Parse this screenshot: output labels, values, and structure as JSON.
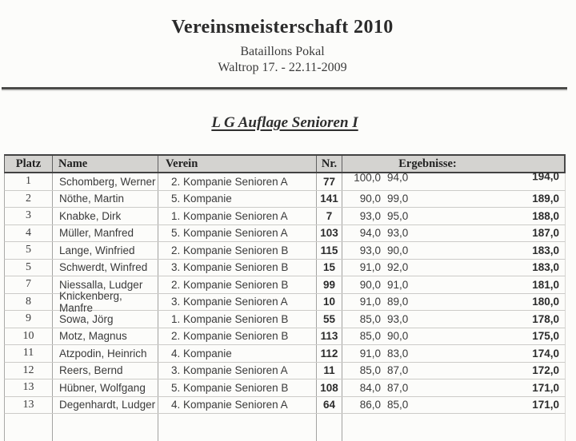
{
  "document": {
    "title": "Vereinsmeisterschaft 2010",
    "subtitle1": "Bataillons Pokal",
    "subtitle2": "Waltrop 17. - 22.11-2009",
    "section_heading": "L G Auflage Senioren I"
  },
  "table": {
    "columns": [
      "Platz",
      "Name",
      "Verein",
      "Nr.",
      "Ergebnisse:"
    ],
    "rows": [
      {
        "platz": "1",
        "name": "Schomberg, Werner",
        "verein": "2. Kompanie Senioren A",
        "nr": "77",
        "s1": "100,0",
        "s2": "94,0",
        "total": "194,0"
      },
      {
        "platz": "2",
        "name": "Nöthe, Martin",
        "verein": "5. Kompanie",
        "nr": "141",
        "s1": "90,0",
        "s2": "99,0",
        "total": "189,0"
      },
      {
        "platz": "3",
        "name": "Knabke, Dirk",
        "verein": "1. Kompanie Senioren A",
        "nr": "7",
        "s1": "93,0",
        "s2": "95,0",
        "total": "188,0"
      },
      {
        "platz": "4",
        "name": "Müller, Manfred",
        "verein": "5. Kompanie Senioren A",
        "nr": "103",
        "s1": "94,0",
        "s2": "93,0",
        "total": "187,0"
      },
      {
        "platz": "5",
        "name": "Lange, Winfried",
        "verein": "2. Kompanie Senioren B",
        "nr": "115",
        "s1": "93,0",
        "s2": "90,0",
        "total": "183,0"
      },
      {
        "platz": "5",
        "name": "Schwerdt, Winfred",
        "verein": "3. Kompanie Senioren B",
        "nr": "15",
        "s1": "91,0",
        "s2": "92,0",
        "total": "183,0"
      },
      {
        "platz": "7",
        "name": "Niessalla, Ludger",
        "verein": "2. Kompanie Senioren B",
        "nr": "99",
        "s1": "90,0",
        "s2": "91,0",
        "total": "181,0"
      },
      {
        "platz": "8",
        "name": "Knickenberg, Manfre",
        "verein": "3. Kompanie Senioren A",
        "nr": "10",
        "s1": "91,0",
        "s2": "89,0",
        "total": "180,0"
      },
      {
        "platz": "9",
        "name": "Sowa, Jörg",
        "verein": "1. Kompanie Senioren B",
        "nr": "55",
        "s1": "85,0",
        "s2": "93,0",
        "total": "178,0"
      },
      {
        "platz": "10",
        "name": "Motz, Magnus",
        "verein": "2. Kompanie Senioren B",
        "nr": "113",
        "s1": "85,0",
        "s2": "90,0",
        "total": "175,0"
      },
      {
        "platz": "11",
        "name": "Atzpodin, Heinrich",
        "verein": "4. Kompanie",
        "nr": "112",
        "s1": "91,0",
        "s2": "83,0",
        "total": "174,0"
      },
      {
        "platz": "12",
        "name": "Reers, Bernd",
        "verein": "3. Kompanie Senioren A",
        "nr": "11",
        "s1": "85,0",
        "s2": "87,0",
        "total": "172,0"
      },
      {
        "platz": "13",
        "name": "Hübner, Wolfgang",
        "verein": "5. Kompanie Senioren B",
        "nr": "108",
        "s1": "84,0",
        "s2": "87,0",
        "total": "171,0"
      },
      {
        "platz": "13",
        "name": "Degenhardt, Ludger",
        "verein": "4. Kompanie Senioren A",
        "nr": "64",
        "s1": "86,0",
        "s2": "85,0",
        "total": "171,0"
      }
    ]
  },
  "colors": {
    "page_background": "#fcfcfa",
    "header_row_background": "#d4d3d0",
    "rule_line": "#4a4a48"
  }
}
